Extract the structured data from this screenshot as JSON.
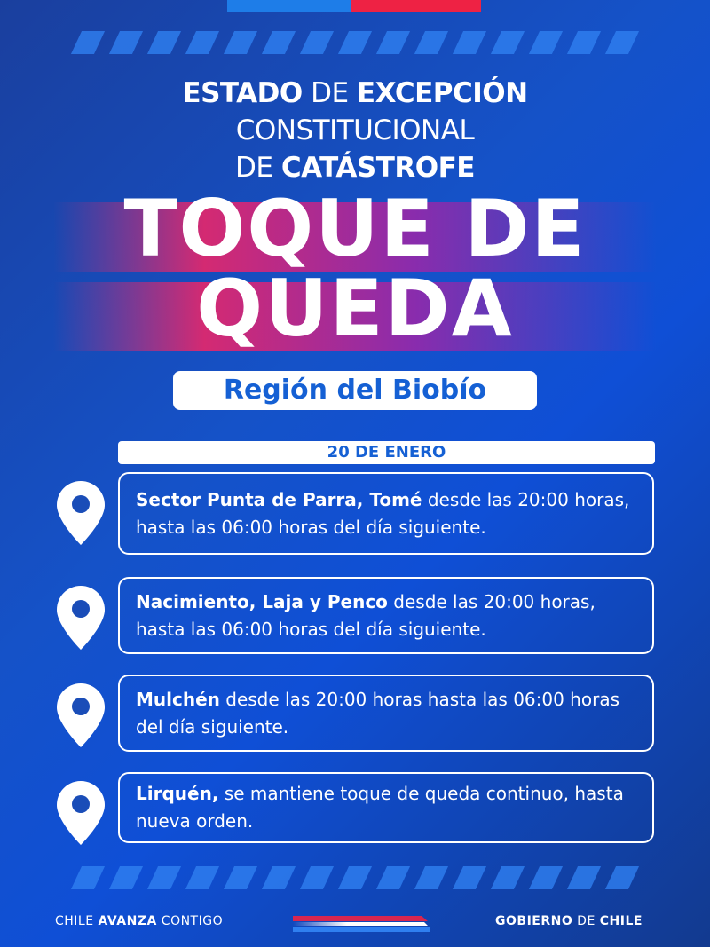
{
  "colors": {
    "flag_blue": "#1e7de8",
    "flag_red": "#ee2244",
    "accent_blue": "#1560d4",
    "background": "#1552c8"
  },
  "header": {
    "line1_a": "ESTADO",
    "line1_b": "DE",
    "line1_c": "EXCEPCIÓN",
    "line2": "CONSTITUCIONAL",
    "line3_a": "DE",
    "line3_b": "CATÁSTROFE"
  },
  "headline": {
    "line1": "TOQUE DE",
    "line2": "QUEDA"
  },
  "region": "Región del Biobío",
  "date": "20 DE ENERO",
  "items": [
    {
      "icon": "map-pin-icon",
      "place": "Sector Punta de Parra, Tomé",
      "text": " desde las 20:00 horas, hasta las 06:00 horas del día siguiente."
    },
    {
      "icon": "map-pin-icon",
      "place": "Nacimiento, Laja y Penco",
      "text": " desde las 20:00 horas, hasta las 06:00 horas del día siguiente."
    },
    {
      "icon": "map-pin-icon",
      "place": "Mulchén",
      "text": " desde las 20:00 horas hasta las 06:00 horas del día siguiente."
    },
    {
      "icon": "map-pin-icon",
      "place": "Lirquén,",
      "text": " se mantiene toque de queda continuo, hasta nueva orden."
    }
  ],
  "footer": {
    "left_a": "CHILE ",
    "left_b": "AVANZA",
    "left_c": " CONTIGO",
    "right_a": "GOBIERNO",
    "right_b": " DE ",
    "right_c": "CHILE"
  }
}
